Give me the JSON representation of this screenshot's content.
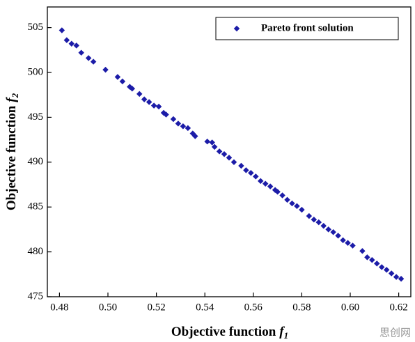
{
  "chart_data": {
    "type": "scatter",
    "xlabel": "Objective function",
    "xlabel_var": "f",
    "xlabel_sub": "1",
    "ylabel": "Objective function",
    "ylabel_var": "f",
    "ylabel_sub": "2",
    "series": [
      {
        "name": "Pareto front solution",
        "color": "#1c1ca8",
        "x": [
          0.481,
          0.483,
          0.485,
          0.487,
          0.489,
          0.492,
          0.494,
          0.499,
          0.504,
          0.506,
          0.509,
          0.51,
          0.513,
          0.515,
          0.517,
          0.519,
          0.521,
          0.523,
          0.524,
          0.527,
          0.529,
          0.531,
          0.533,
          0.535,
          0.536,
          0.541,
          0.543,
          0.544,
          0.546,
          0.548,
          0.55,
          0.552,
          0.555,
          0.557,
          0.559,
          0.561,
          0.563,
          0.565,
          0.567,
          0.569,
          0.57,
          0.572,
          0.574,
          0.576,
          0.578,
          0.58,
          0.583,
          0.585,
          0.587,
          0.589,
          0.591,
          0.593,
          0.595,
          0.597,
          0.599,
          0.601,
          0.605,
          0.607,
          0.609,
          0.611,
          0.613,
          0.615,
          0.617,
          0.619,
          0.621
        ],
        "values": [
          504.7,
          503.6,
          503.2,
          503.0,
          502.2,
          501.6,
          501.2,
          500.3,
          499.5,
          499.0,
          498.4,
          498.2,
          497.6,
          497.0,
          496.7,
          496.3,
          496.2,
          495.5,
          495.3,
          494.8,
          494.3,
          494.0,
          493.8,
          493.2,
          492.9,
          492.3,
          492.2,
          491.7,
          491.2,
          490.9,
          490.5,
          490.0,
          489.6,
          489.1,
          488.8,
          488.4,
          487.9,
          487.6,
          487.3,
          486.9,
          486.7,
          486.3,
          485.8,
          485.4,
          485.1,
          484.7,
          484.0,
          483.6,
          483.3,
          482.9,
          482.5,
          482.2,
          481.8,
          481.3,
          481.0,
          480.7,
          480.1,
          479.4,
          479.1,
          478.7,
          478.3,
          478.0,
          477.6,
          477.2,
          477.0
        ]
      }
    ],
    "xlim": [
      0.475,
      0.625
    ],
    "xticks": [
      0.48,
      {
        "value": 0.5,
        "label": "0.50"
      },
      0.52,
      0.54,
      0.56,
      0.58,
      {
        "value": 0.6,
        "label": "0.60"
      },
      0.62
    ],
    "ylim": [
      475,
      507.3
    ],
    "yticks": [
      475,
      480,
      485,
      490,
      495,
      500,
      505
    ],
    "legend": "upper-right",
    "watermark": "思创网"
  }
}
